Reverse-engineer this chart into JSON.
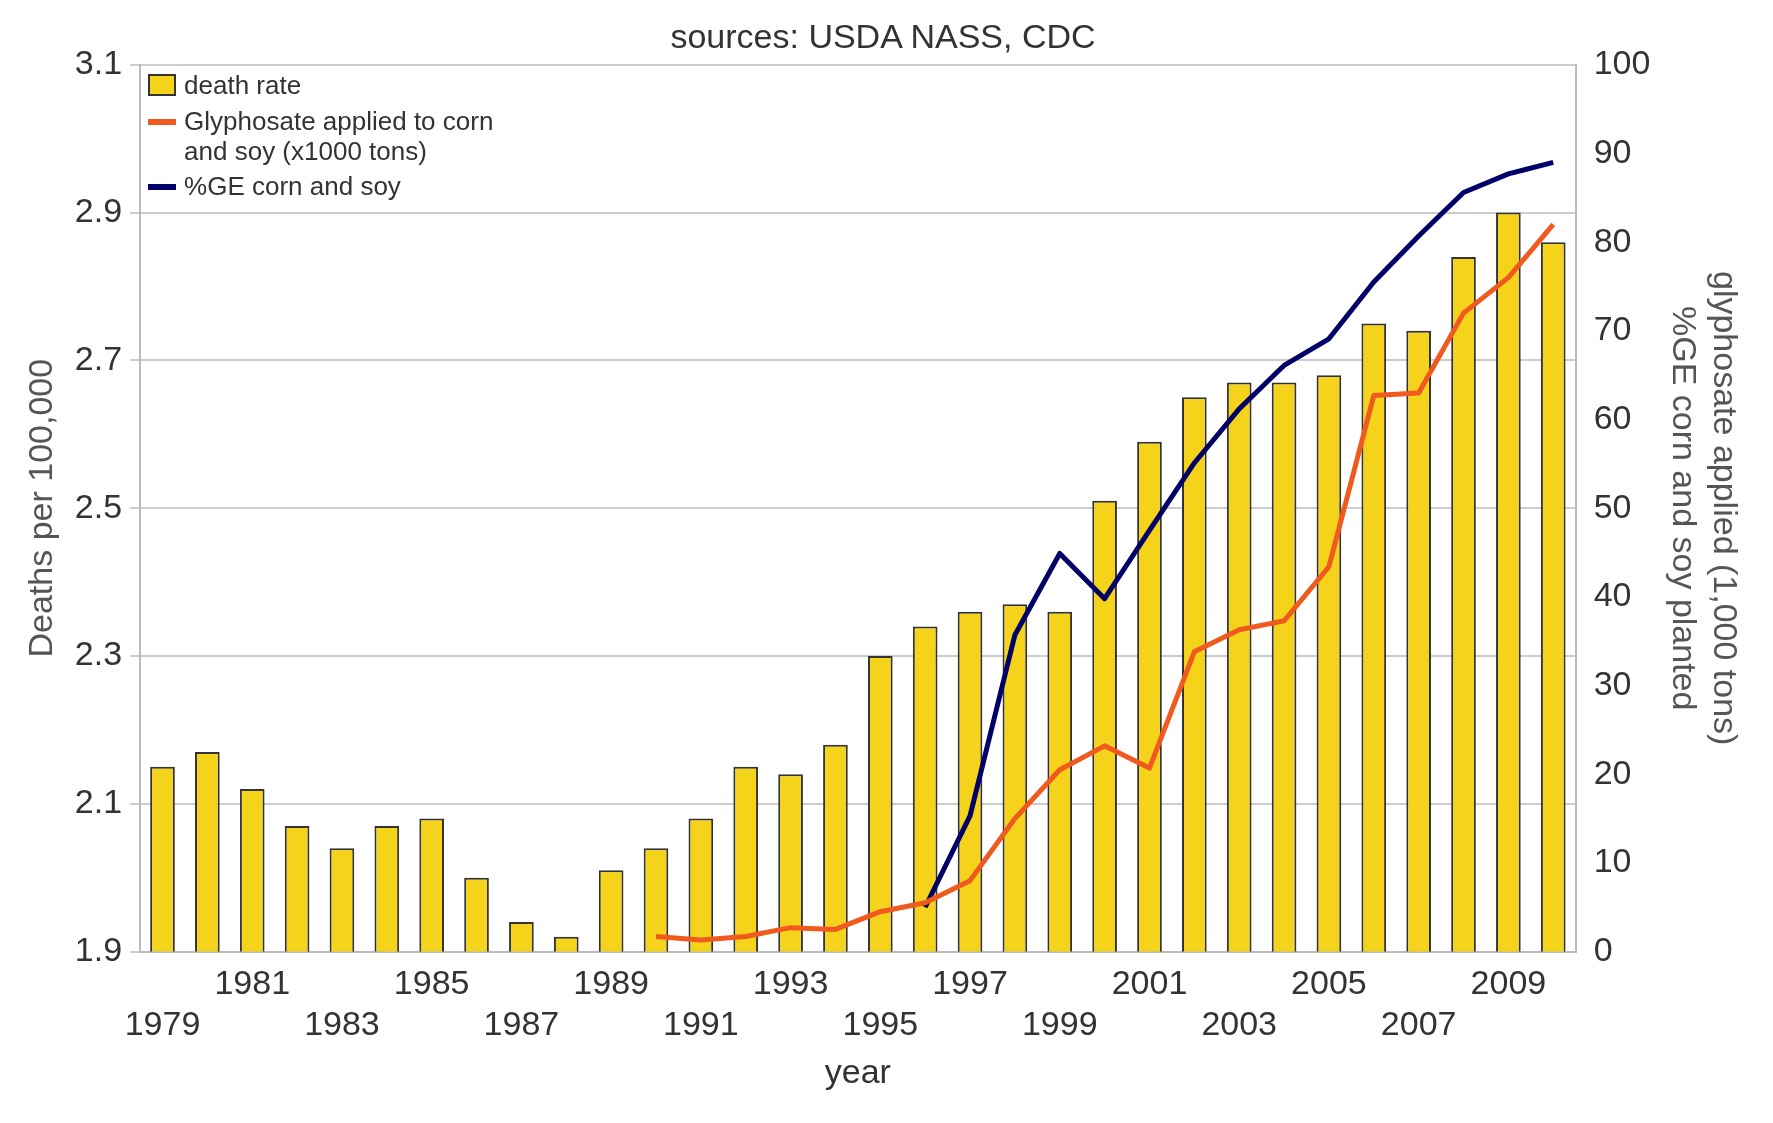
{
  "chart_data": {
    "type": "bar",
    "title": "sources: USDA NASS, CDC",
    "xlabel": "year",
    "ylabel": "Deaths per 100,000",
    "y2label": "glyphosate applied (1,000 tons)\n%GE corn and soy planted",
    "categories": [
      "1979",
      null,
      "1981",
      null,
      "1983",
      null,
      "1985",
      null,
      "1987",
      null,
      "1989",
      null,
      "1991",
      null,
      "1993",
      null,
      "1995",
      null,
      "1997",
      null,
      "1999",
      null,
      "2001",
      null,
      "2003",
      null,
      "2005",
      null,
      "2007",
      null,
      "2009",
      null
    ],
    "series": [
      {
        "name": "death rate",
        "color": "#f5d31a",
        "values": [
          2.15,
          2.17,
          2.12,
          2.07,
          2.04,
          2.07,
          2.08,
          2.0,
          1.94,
          1.92,
          2.01,
          2.04,
          2.08,
          2.15,
          2.14,
          2.18,
          2.3,
          2.34,
          2.36,
          2.37,
          2.36,
          2.51,
          2.59,
          2.65,
          2.67,
          2.67,
          2.68,
          2.75,
          2.74,
          2.84,
          2.9,
          2.86
        ]
      },
      {
        "name": "Glyphosate applied to corn and soy (x1000 tons)",
        "type": "line",
        "axis": "y2",
        "color": "#f05a1e",
        "values": [
          null,
          null,
          null,
          null,
          null,
          null,
          null,
          null,
          null,
          null,
          null,
          1.7,
          1.3,
          1.7,
          2.7,
          2.5,
          4.5,
          5.5,
          8,
          15,
          20.5,
          23.2,
          20.7,
          33.8,
          36.3,
          37.3,
          43.4,
          62.7,
          63,
          72,
          76,
          82
        ]
      },
      {
        "name": "%GE corn and soy",
        "type": "line",
        "axis": "y2",
        "color": "#000066",
        "values": [
          null,
          null,
          null,
          null,
          null,
          null,
          null,
          null,
          null,
          null,
          null,
          null,
          null,
          null,
          null,
          null,
          null,
          5,
          15.3,
          35.7,
          44.9,
          39.8,
          47.5,
          55.1,
          61.2,
          66.1,
          69.1,
          75.5,
          80.7,
          85.6,
          87.7,
          89
        ]
      }
    ],
    "ylim": [
      1.9,
      3.1
    ],
    "yticks": [
      1.9,
      2.1,
      2.3,
      2.5,
      2.7,
      2.9,
      3.1
    ],
    "y2lim": [
      0,
      100
    ],
    "y2ticks": [
      0,
      10,
      20,
      30,
      40,
      50,
      60,
      70,
      80,
      90,
      100
    ],
    "grid": "y",
    "legend": "top left"
  }
}
